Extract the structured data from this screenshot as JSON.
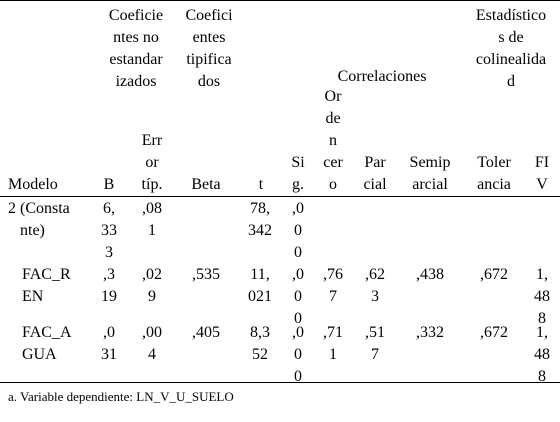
{
  "header": {
    "group_unstd": "Coeficie\nntes no\nestandar\nizados",
    "group_std": "Coefici\nentes\ntipifica\ndos",
    "group_corr": "Correlaciones",
    "group_col": "Estadístico\ns de\ncolinealida\nd",
    "modelo": "Modelo",
    "b": "B",
    "err": "Err\nor\ntíp.",
    "beta": "Beta",
    "t": "t",
    "sig": "Si\ng.",
    "orden": "Or\nde\nn\ncer\no",
    "parcial": "Par\ncial",
    "semi": "Semip\narcial",
    "tol": "Toler\nancia",
    "fiv": "FI\nV"
  },
  "rows": [
    {
      "model": "2 (Consta\n   nte)",
      "b": "6,\n33\n3",
      "err": ",08\n1",
      "beta": "",
      "t": "78,\n342",
      "sig": ",0\n0\n0",
      "orden": "",
      "parcial": "",
      "semi": "",
      "tol": "",
      "fiv": ""
    },
    {
      "model": "FAC_R\nEN",
      "b": ",3\n19",
      "err": ",02\n9",
      "beta": ",535",
      "t": "11,\n021",
      "sig": ",0\n0\n0",
      "orden": ",76\n7",
      "parcial": ",62\n3",
      "semi": ",438",
      "tol": ",672",
      "fiv": "1,\n48\n8"
    },
    {
      "model": "FAC_A\nGUA",
      "b": ",0\n31",
      "err": ",00\n4",
      "beta": ",405",
      "t": "8,3\n52",
      "sig": ",0\n0\n0",
      "orden": ",71\n1",
      "parcial": ",51\n7",
      "semi": ",332",
      "tol": ",672",
      "fiv": "1,\n48\n8"
    }
  ],
  "footnote": "a. Variable dependiente: LN_V_U_SUELO"
}
